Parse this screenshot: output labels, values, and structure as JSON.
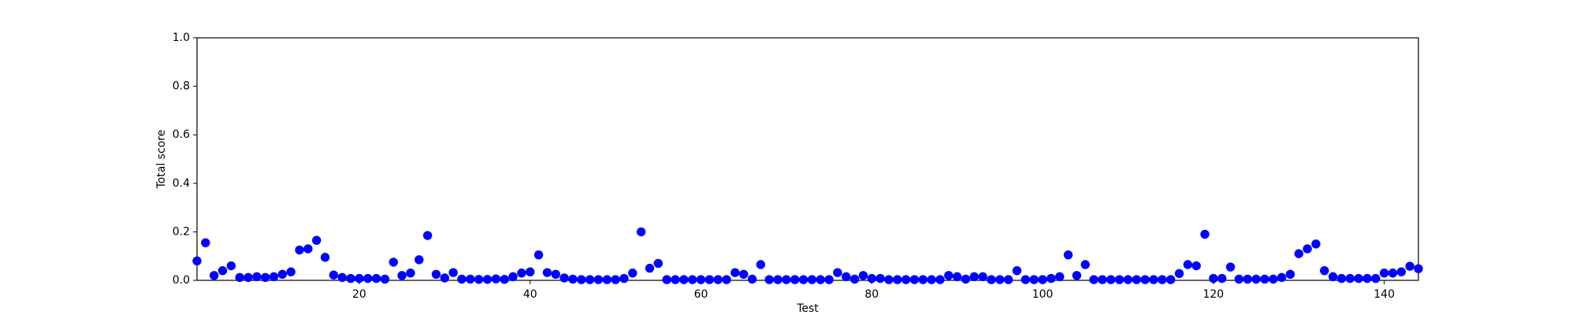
{
  "chart_data": {
    "type": "scatter",
    "xlabel": "Test",
    "ylabel": "Total score",
    "color": "#0000ff",
    "x": [
      1,
      2,
      3,
      4,
      5,
      6,
      7,
      8,
      9,
      10,
      11,
      12,
      13,
      14,
      15,
      16,
      17,
      18,
      19,
      20,
      21,
      22,
      23,
      24,
      25,
      26,
      27,
      28,
      29,
      30,
      31,
      32,
      33,
      34,
      35,
      36,
      37,
      38,
      39,
      40,
      41,
      42,
      43,
      44,
      45,
      46,
      47,
      48,
      49,
      50,
      51,
      52,
      53,
      54,
      55,
      56,
      57,
      58,
      59,
      60,
      61,
      62,
      63,
      64,
      65,
      66,
      67,
      68,
      69,
      70,
      71,
      72,
      73,
      74,
      75,
      76,
      77,
      78,
      79,
      80,
      81,
      82,
      83,
      84,
      85,
      86,
      87,
      88,
      89,
      90,
      91,
      92,
      93,
      94,
      95,
      96,
      97,
      98,
      99,
      100,
      101,
      102,
      103,
      104,
      105,
      106,
      107,
      108,
      109,
      110,
      111,
      112,
      113,
      114,
      115,
      116,
      117,
      118,
      119,
      120,
      121,
      122,
      123,
      124,
      125,
      126,
      127,
      128,
      129,
      130,
      131,
      132,
      133,
      134,
      135,
      136,
      137,
      138,
      139,
      140,
      141,
      142,
      143,
      144
    ],
    "values": [
      0.08,
      0.155,
      0.02,
      0.04,
      0.06,
      0.012,
      0.012,
      0.015,
      0.012,
      0.015,
      0.025,
      0.035,
      0.125,
      0.13,
      0.165,
      0.095,
      0.022,
      0.012,
      0.008,
      0.008,
      0.008,
      0.008,
      0.005,
      0.075,
      0.02,
      0.03,
      0.085,
      0.185,
      0.025,
      0.01,
      0.032,
      0.005,
      0.005,
      0.004,
      0.004,
      0.006,
      0.004,
      0.015,
      0.03,
      0.035,
      0.105,
      0.032,
      0.025,
      0.01,
      0.005,
      0.003,
      0.003,
      0.003,
      0.003,
      0.003,
      0.008,
      0.03,
      0.2,
      0.05,
      0.07,
      0.003,
      0.003,
      0.003,
      0.003,
      0.003,
      0.003,
      0.003,
      0.003,
      0.032,
      0.025,
      0.005,
      0.065,
      0.003,
      0.003,
      0.003,
      0.003,
      0.003,
      0.003,
      0.003,
      0.003,
      0.032,
      0.015,
      0.005,
      0.02,
      0.008,
      0.008,
      0.003,
      0.003,
      0.003,
      0.003,
      0.003,
      0.003,
      0.003,
      0.02,
      0.015,
      0.005,
      0.015,
      0.015,
      0.003,
      0.003,
      0.003,
      0.04,
      0.003,
      0.003,
      0.003,
      0.008,
      0.015,
      0.105,
      0.02,
      0.065,
      0.003,
      0.003,
      0.003,
      0.003,
      0.003,
      0.003,
      0.003,
      0.003,
      0.003,
      0.003,
      0.028,
      0.065,
      0.06,
      0.19,
      0.008,
      0.008,
      0.055,
      0.005,
      0.005,
      0.005,
      0.005,
      0.005,
      0.012,
      0.025,
      0.11,
      0.13,
      0.15,
      0.04,
      0.015,
      0.008,
      0.008,
      0.008,
      0.008,
      0.008,
      0.03,
      0.03,
      0.035,
      0.058,
      0.048
    ],
    "xlim": [
      1,
      144
    ],
    "xticks": [
      20,
      40,
      60,
      80,
      100,
      120,
      140
    ],
    "ylim": [
      0,
      1
    ],
    "yticks": [
      {
        "value": 0,
        "label": "0.0"
      },
      0.2,
      0.4,
      0.6,
      0.8,
      {
        "value": 1,
        "label": "1.0"
      }
    ]
  }
}
